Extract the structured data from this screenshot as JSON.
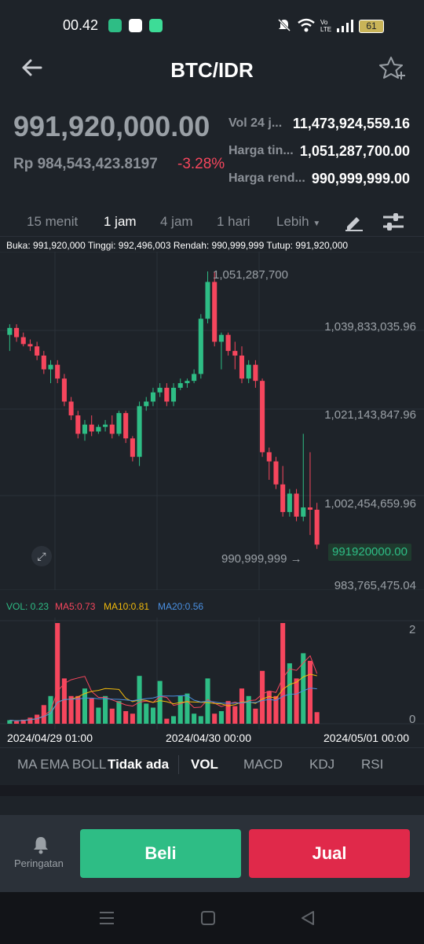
{
  "status_bar": {
    "time": "00.42",
    "battery": "61"
  },
  "header": {
    "title": "BTC/IDR"
  },
  "price": {
    "last": "991,920,000.00",
    "fiat": "Rp 984,543,423.8197",
    "change": "-3.28%"
  },
  "stats": [
    {
      "label": "Vol 24 j...",
      "value": "11,473,924,559.16"
    },
    {
      "label": "Harga tin...",
      "value": "1,051,287,700.00"
    },
    {
      "label": "Harga rend...",
      "value": "990,999,999.00"
    }
  ],
  "timeframes": [
    "15 menit",
    "1 jam",
    "4 jam",
    "1 hari",
    "Lebih"
  ],
  "active_timeframe": "1 jam",
  "ohlc_line": "Buka: 991,920,000 Tinggi: 992,496,003 Rendah: 990,999,999 Tutup: 991,920,000",
  "price_axis": [
    "1,039,833,035.96",
    "1,021,143,847.96",
    "1,002,454,659.96",
    "983,765,475.04"
  ],
  "high_marker": "1,051,287,700",
  "low_marker": "990,999,999 →",
  "current_price_tag": "991920000.00",
  "indicators": {
    "vol": "VOL: 0.23",
    "ma5": "MA5:0.73",
    "ma10": "MA10:0.81",
    "ma20": "MA20:0.56"
  },
  "vol_axis": [
    "2",
    "0"
  ],
  "date_labels": [
    "2024/04/29 01:00",
    "2024/04/30 00:00",
    "2024/05/01 00:00"
  ],
  "bottom_tabs": {
    "group": "MA EMA BOLL",
    "none": "Tidak ada",
    "items": [
      "VOL",
      "MACD",
      "KDJ",
      "RSI"
    ]
  },
  "actions": {
    "alert": "Peringatan",
    "buy": "Beli",
    "sell": "Jual"
  },
  "colors": {
    "bg": "#1e2329",
    "up": "#2ebd85",
    "down": "#f6465d",
    "ma5": "#f6465d",
    "ma10": "#f0b90b",
    "ma20": "#4a90e2"
  },
  "chart_data": {
    "type": "candlestick",
    "interval": "1 jam",
    "candles": [
      {
        "o": 1037500000,
        "h": 1039800000,
        "l": 1034000000,
        "c": 1039000000
      },
      {
        "o": 1039000000,
        "h": 1039800000,
        "l": 1036000000,
        "c": 1037000000
      },
      {
        "o": 1037000000,
        "h": 1038000000,
        "l": 1035000000,
        "c": 1035500000
      },
      {
        "o": 1035500000,
        "h": 1036500000,
        "l": 1034000000,
        "c": 1035000000
      },
      {
        "o": 1035000000,
        "h": 1036000000,
        "l": 1032000000,
        "c": 1033000000
      },
      {
        "o": 1033000000,
        "h": 1034000000,
        "l": 1029000000,
        "c": 1030000000
      },
      {
        "o": 1030000000,
        "h": 1032000000,
        "l": 1027000000,
        "c": 1031000000
      },
      {
        "o": 1031000000,
        "h": 1032000000,
        "l": 1027000000,
        "c": 1028000000
      },
      {
        "o": 1028000000,
        "h": 1029000000,
        "l": 1022000000,
        "c": 1023000000
      },
      {
        "o": 1023000000,
        "h": 1024000000,
        "l": 1019000000,
        "c": 1020000000
      },
      {
        "o": 1020000000,
        "h": 1021000000,
        "l": 1015000000,
        "c": 1016000000
      },
      {
        "o": 1016000000,
        "h": 1019000000,
        "l": 1014500000,
        "c": 1018000000
      },
      {
        "o": 1018000000,
        "h": 1020000000,
        "l": 1015500000,
        "c": 1016500000
      },
      {
        "o": 1016500000,
        "h": 1018000000,
        "l": 1016000000,
        "c": 1017500000
      },
      {
        "o": 1017500000,
        "h": 1019000000,
        "l": 1016500000,
        "c": 1018000000
      },
      {
        "o": 1018000000,
        "h": 1020000000,
        "l": 1015000000,
        "c": 1016000000
      },
      {
        "o": 1016000000,
        "h": 1021000000,
        "l": 1015500000,
        "c": 1020500000
      },
      {
        "o": 1020500000,
        "h": 1021000000,
        "l": 1014000000,
        "c": 1015000000
      },
      {
        "o": 1015000000,
        "h": 1015500000,
        "l": 1010000000,
        "c": 1011000000
      },
      {
        "o": 1011000000,
        "h": 1023000000,
        "l": 1009000000,
        "c": 1022000000
      },
      {
        "o": 1022000000,
        "h": 1024000000,
        "l": 1021000000,
        "c": 1023000000
      },
      {
        "o": 1023000000,
        "h": 1026000000,
        "l": 1022000000,
        "c": 1025000000
      },
      {
        "o": 1025000000,
        "h": 1027000000,
        "l": 1024000000,
        "c": 1026000000
      },
      {
        "o": 1026000000,
        "h": 1027000000,
        "l": 1022000000,
        "c": 1023000000
      },
      {
        "o": 1023000000,
        "h": 1027000000,
        "l": 1022000000,
        "c": 1026000000
      },
      {
        "o": 1026000000,
        "h": 1028000000,
        "l": 1025500000,
        "c": 1027000000
      },
      {
        "o": 1027000000,
        "h": 1028000000,
        "l": 1026000000,
        "c": 1027500000
      },
      {
        "o": 1027500000,
        "h": 1030000000,
        "l": 1027000000,
        "c": 1029000000
      },
      {
        "o": 1029000000,
        "h": 1042000000,
        "l": 1028000000,
        "c": 1041000000
      },
      {
        "o": 1041000000,
        "h": 1051287700,
        "l": 1040000000,
        "c": 1049000000
      },
      {
        "o": 1049000000,
        "h": 1051287700,
        "l": 1035000000,
        "c": 1036000000
      },
      {
        "o": 1036000000,
        "h": 1038000000,
        "l": 1030000000,
        "c": 1037500000
      },
      {
        "o": 1037500000,
        "h": 1038000000,
        "l": 1033000000,
        "c": 1034000000
      },
      {
        "o": 1034000000,
        "h": 1036000000,
        "l": 1030000000,
        "c": 1033000000
      },
      {
        "o": 1033000000,
        "h": 1035000000,
        "l": 1027000000,
        "c": 1028000000
      },
      {
        "o": 1028000000,
        "h": 1032000000,
        "l": 1027000000,
        "c": 1031000000
      },
      {
        "o": 1031000000,
        "h": 1032000000,
        "l": 1026000000,
        "c": 1027500000
      },
      {
        "o": 1027500000,
        "h": 1028000000,
        "l": 1011000000,
        "c": 1012000000
      },
      {
        "o": 1012000000,
        "h": 1013000000,
        "l": 1006000000,
        "c": 1010000000
      },
      {
        "o": 1010000000,
        "h": 1011000000,
        "l": 1004000000,
        "c": 1005000000
      },
      {
        "o": 1005000000,
        "h": 1009000000,
        "l": 998000000,
        "c": 999000000
      },
      {
        "o": 999000000,
        "h": 1004000000,
        "l": 998000000,
        "c": 1003000000
      },
      {
        "o": 1003000000,
        "h": 1004000000,
        "l": 997000000,
        "c": 998000000
      },
      {
        "o": 998000000,
        "h": 1016000000,
        "l": 997000000,
        "c": 1000000000
      },
      {
        "o": 1000000000,
        "h": 1012000000,
        "l": 994000000,
        "c": 999500000
      },
      {
        "o": 999500000,
        "h": 1001000000,
        "l": 990999999,
        "c": 991920000
      }
    ],
    "volume": [
      0.07,
      0.05,
      0.08,
      0.12,
      0.18,
      0.37,
      0.55,
      2.0,
      0.9,
      0.55,
      0.55,
      0.7,
      0.5,
      0.32,
      0.55,
      0.3,
      0.45,
      0.25,
      0.2,
      0.95,
      0.4,
      0.32,
      0.85,
      0.1,
      0.15,
      0.55,
      0.6,
      0.2,
      0.15,
      0.9,
      0.2,
      0.25,
      0.45,
      0.35,
      0.7,
      0.55,
      0.3,
      1.05,
      0.65,
      0.55,
      2.0,
      1.2,
      0.9,
      1.4,
      1.25,
      0.23
    ],
    "price_axis_range": [
      983765475.04,
      1051287700
    ],
    "volume_axis": [
      0,
      2
    ],
    "x_labels": [
      "2024/04/29 01:00",
      "2024/04/30 00:00",
      "2024/05/01 00:00"
    ]
  }
}
